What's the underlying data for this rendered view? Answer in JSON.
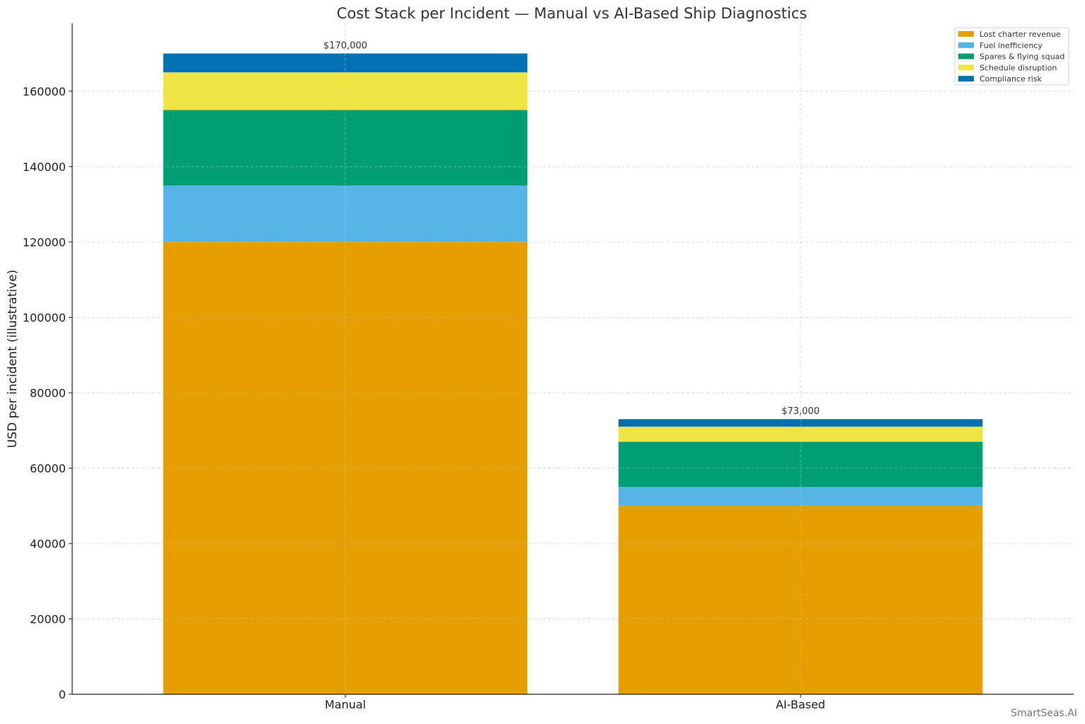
{
  "watermark": "SmartSeas.AI",
  "chart_data": {
    "type": "bar",
    "stacked": true,
    "title": "Cost Stack per Incident — Manual vs AI-Based Ship Diagnostics",
    "xlabel": "",
    "ylabel": "USD per incident (illustrative)",
    "ylim": [
      0,
      178000
    ],
    "yticks": [
      0,
      20000,
      40000,
      60000,
      80000,
      100000,
      120000,
      140000,
      160000
    ],
    "grid": true,
    "legend_position": "top-right",
    "categories": [
      "Manual",
      "AI-Based"
    ],
    "series": [
      {
        "name": "Lost charter revenue",
        "color": "#E69F00",
        "values": [
          120000,
          50000
        ]
      },
      {
        "name": "Fuel inefficiency",
        "color": "#56B4E9",
        "values": [
          15000,
          5000
        ]
      },
      {
        "name": "Spares & flying squad",
        "color": "#009E73",
        "values": [
          20000,
          12000
        ]
      },
      {
        "name": "Schedule disruption",
        "color": "#F0E442",
        "values": [
          10000,
          4000
        ]
      },
      {
        "name": "Compliance risk",
        "color": "#0072B2",
        "values": [
          5000,
          2000
        ]
      }
    ],
    "totals": [
      170000,
      73000
    ],
    "total_labels": [
      "$170,000",
      "$73,000"
    ]
  }
}
